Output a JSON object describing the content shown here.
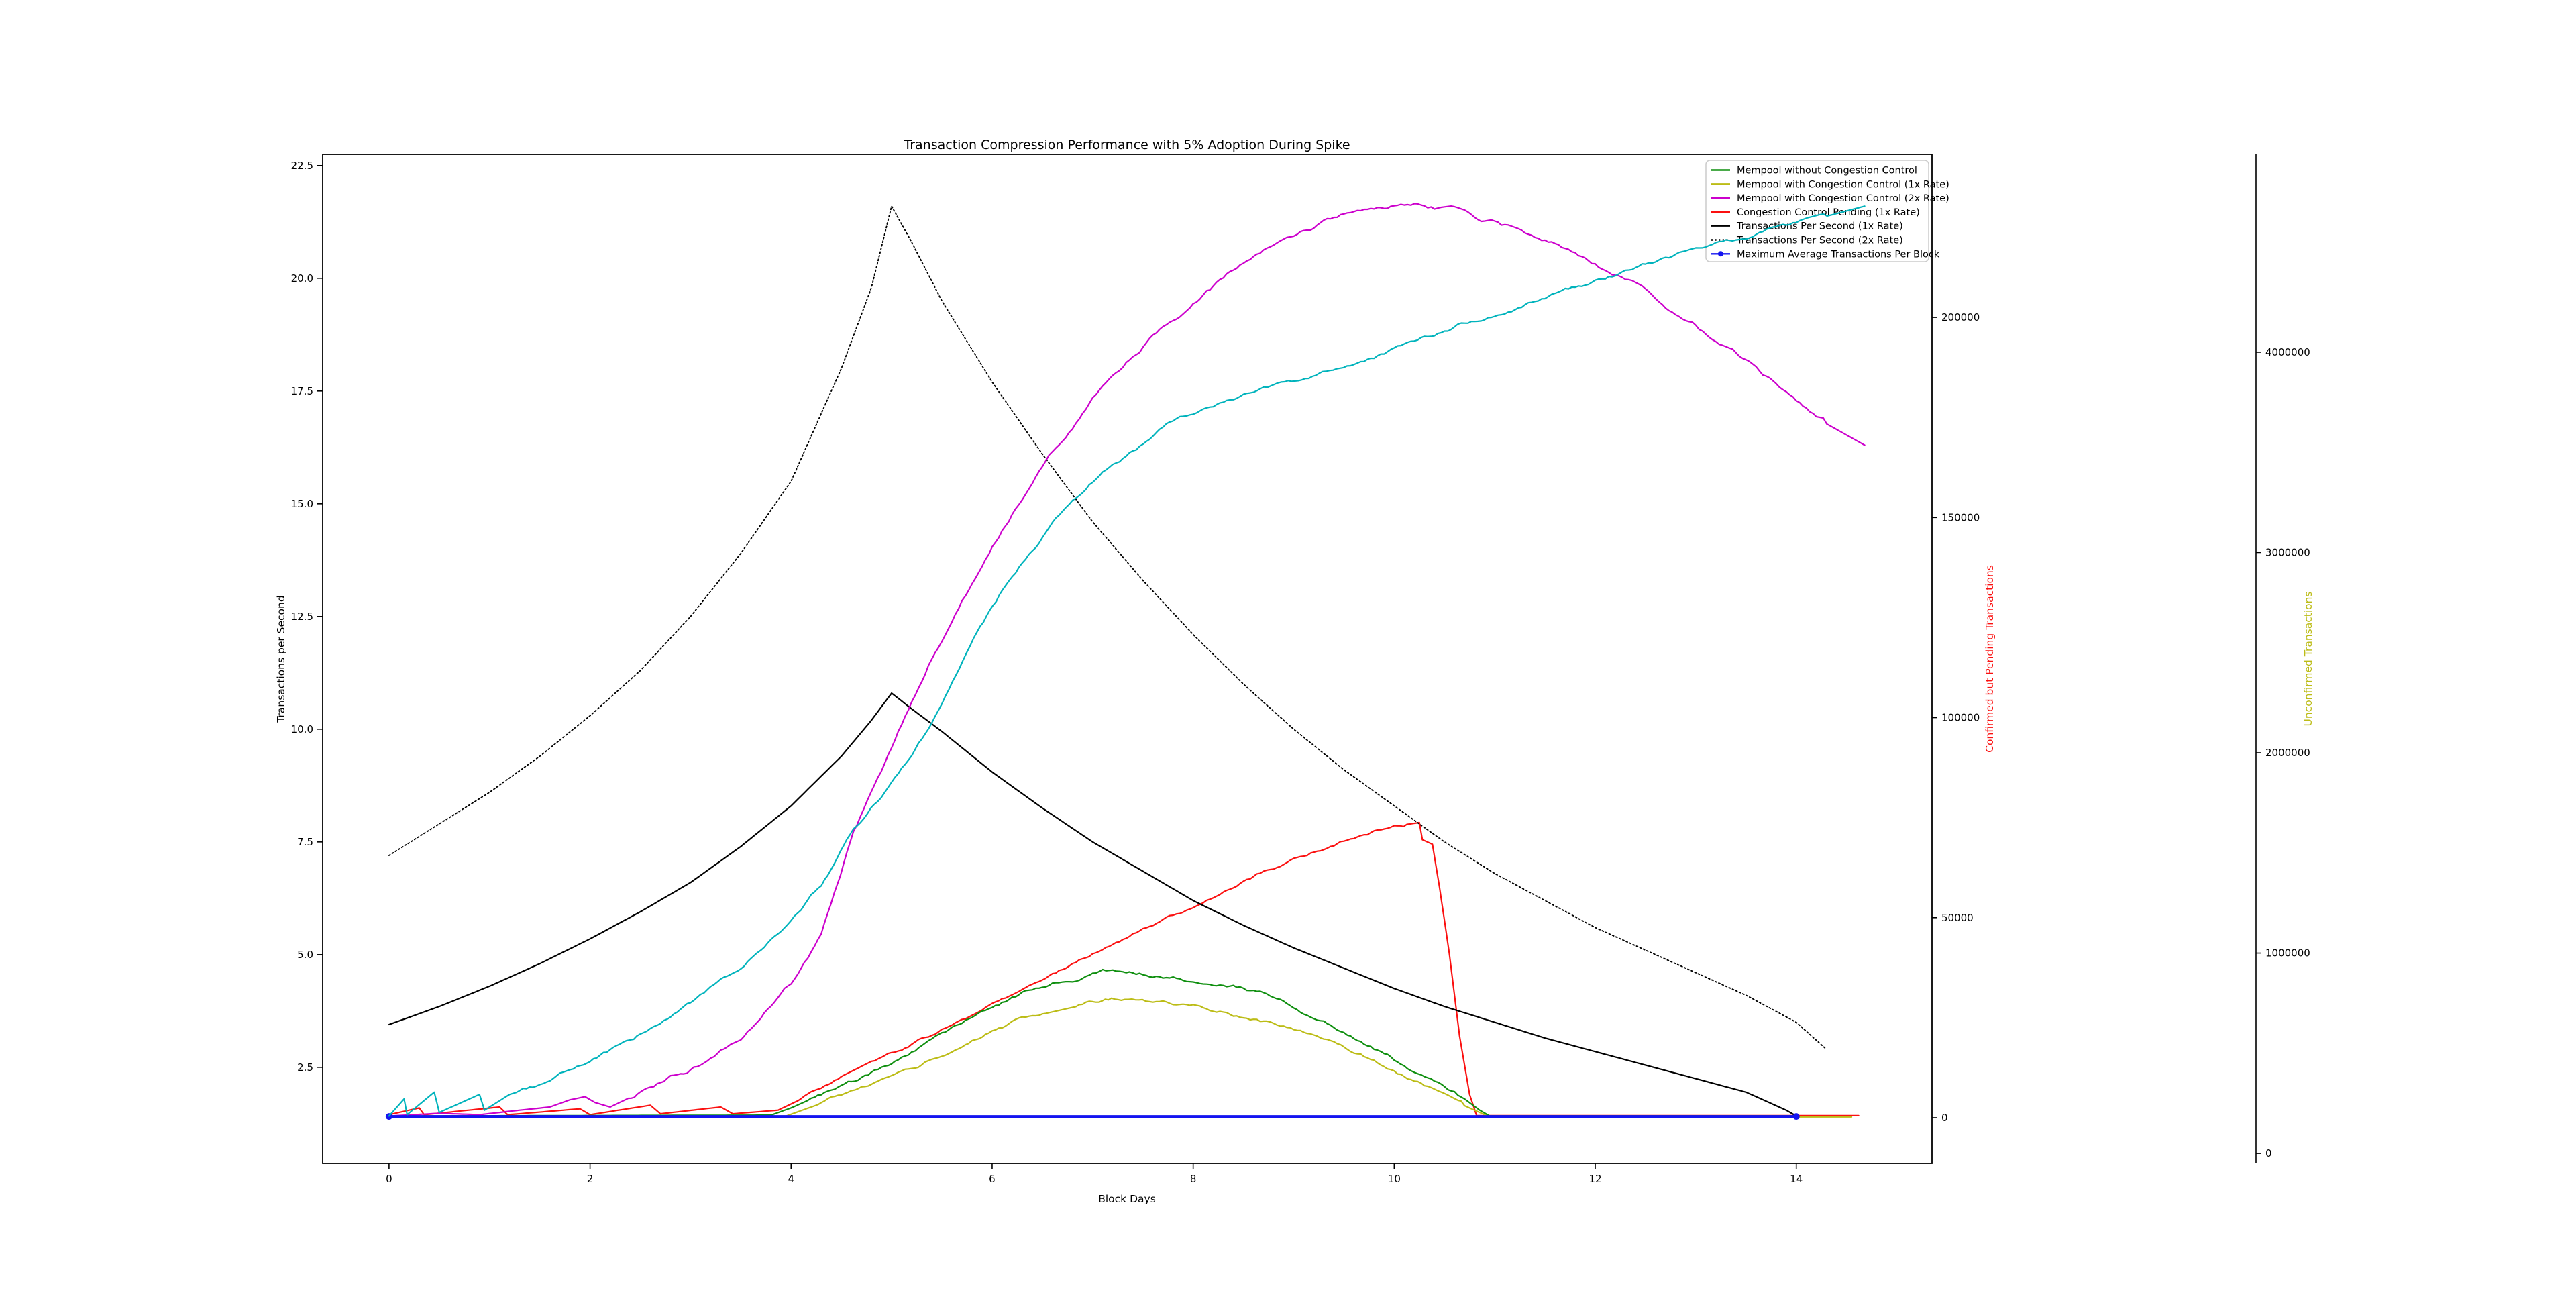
{
  "title": "Transaction Compression Performance with 5% Adoption During Spike",
  "legend": {
    "entries": [
      {
        "series": "mempool_no_cc",
        "label": "Mempool without Congestion Control",
        "color": "#0f8f0f",
        "dash": null,
        "marker": false
      },
      {
        "series": "mempool_cc_1x",
        "label": "Mempool with Congestion Control (1x Rate)",
        "color": "#bcbc16",
        "dash": null,
        "marker": false
      },
      {
        "series": "mempool_cc_2x",
        "label": "Mempool with Congestion Control (2x Rate)",
        "color": "#cc00cc",
        "dash": null,
        "marker": false
      },
      {
        "series": "cc_pending_1x",
        "label": "Congestion Control Pending (1x Rate)",
        "color": "#fb1010",
        "dash": null,
        "marker": false
      },
      {
        "series": "tps_1x",
        "label": "Transactions Per Second (1x Rate)",
        "color": "#000000",
        "dash": null,
        "marker": false
      },
      {
        "series": "tps_2x",
        "label": "Transactions Per Second (2x Rate)",
        "color": "#000000",
        "dash": "2 3.6",
        "marker": false
      },
      {
        "series": "max_avg_per_block",
        "label": "Maximum Average Transactions Per Block",
        "color": "#1414f0",
        "dash": null,
        "marker": true
      }
    ]
  },
  "chart_data": {
    "type": "line",
    "title": "Transaction Compression Performance with 5% Adoption During Spike",
    "xlabel": "Block Days",
    "x_range": [
      -0.66,
      15.35
    ],
    "grid": false,
    "legend_position": "upper right",
    "axes": {
      "x": {
        "label": "Block Days",
        "ticks": [
          0,
          2,
          4,
          6,
          8,
          10,
          12,
          14
        ]
      },
      "left": {
        "label": "Transactions per Second",
        "color": "#000000",
        "range": [
          0.37,
          22.75
        ],
        "ticks": [
          2.5,
          5.0,
          7.5,
          10.0,
          12.5,
          15.0,
          17.5,
          20.0,
          22.5
        ]
      },
      "pending": {
        "label": "Confirmed but Pending Transactions",
        "color": "#fb1010",
        "range": [
          -11400,
          240750
        ],
        "ticks": [
          0,
          50000,
          100000,
          150000,
          200000
        ]
      },
      "unconfirmed": {
        "label": "Unconfirmed Transactions",
        "color": "#bcbc16",
        "range": [
          -50000,
          4988000
        ],
        "ticks": [
          0,
          1000000,
          2000000,
          3000000,
          4000000
        ]
      }
    },
    "series": [
      {
        "id": "cc_pending_1x",
        "name": "Congestion Control Pending (1x Rate)",
        "color": "#fb1010",
        "width": 2.2,
        "dash": null,
        "axis": "left_visual",
        "pending_axis_peak_value": 74000,
        "noise": {
          "amp": 0.06,
          "from": 4.1,
          "to": 10.1,
          "seed": 9
        },
        "points": [
          [
            0,
            1.45
          ],
          [
            0.3,
            1.6
          ],
          [
            0.35,
            1.45
          ],
          [
            1.1,
            1.62
          ],
          [
            1.18,
            1.45
          ],
          [
            1.9,
            1.58
          ],
          [
            2.0,
            1.45
          ],
          [
            2.6,
            1.66
          ],
          [
            2.7,
            1.47
          ],
          [
            3.3,
            1.62
          ],
          [
            3.42,
            1.47
          ],
          [
            3.87,
            1.55
          ],
          [
            4.2,
            1.9
          ],
          [
            4.6,
            2.35
          ],
          [
            5,
            2.8
          ],
          [
            5.5,
            3.35
          ],
          [
            6,
            3.95
          ],
          [
            6.5,
            4.5
          ],
          [
            7,
            5.05
          ],
          [
            7.5,
            5.6
          ],
          [
            8,
            6.1
          ],
          [
            8.5,
            6.65
          ],
          [
            9,
            7.15
          ],
          [
            9.5,
            7.55
          ],
          [
            10,
            7.85
          ],
          [
            10.25,
            7.93
          ],
          [
            10.28,
            7.55
          ],
          [
            10.38,
            7.45
          ],
          [
            10.45,
            6.5
          ],
          [
            10.55,
            5.0
          ],
          [
            10.65,
            3.2
          ],
          [
            10.75,
            1.9
          ],
          [
            10.82,
            1.43
          ],
          [
            14.62,
            1.43
          ]
        ]
      },
      {
        "id": "mempool_cc_1x",
        "name": "Mempool with Congestion Control (1x Rate)",
        "color": "#bcbc16",
        "width": 2.2,
        "dash": null,
        "axis": "left_visual",
        "unconfirmed_axis_peak_value": 780000,
        "noise": {
          "amp": 0.07,
          "from": 4.3,
          "to": 10.7,
          "seed": 13
        },
        "points": [
          [
            0,
            1.4
          ],
          [
            3.95,
            1.42
          ],
          [
            4.3,
            1.7
          ],
          [
            4.7,
            2.0
          ],
          [
            5,
            2.25
          ],
          [
            5.5,
            2.8
          ],
          [
            6,
            3.35
          ],
          [
            6.5,
            3.75
          ],
          [
            7,
            4.0
          ],
          [
            7.25,
            4.06
          ],
          [
            7.6,
            3.95
          ],
          [
            8,
            3.82
          ],
          [
            8.5,
            3.6
          ],
          [
            9,
            3.3
          ],
          [
            9.4,
            3.0
          ],
          [
            9.8,
            2.6
          ],
          [
            10.2,
            2.15
          ],
          [
            10.5,
            1.85
          ],
          [
            10.8,
            1.55
          ],
          [
            10.95,
            1.4
          ],
          [
            14.55,
            1.4
          ]
        ]
      },
      {
        "id": "mempool_no_cc",
        "name": "Mempool without Congestion Control",
        "color": "#0f8f0f",
        "width": 2.2,
        "dash": null,
        "axis": "left_visual",
        "unconfirmed_axis_peak_value": 915000,
        "noise": {
          "amp": 0.07,
          "from": 4.2,
          "to": 10.6,
          "seed": 7
        },
        "points": [
          [
            0,
            1.42
          ],
          [
            3.8,
            1.44
          ],
          [
            4,
            1.6
          ],
          [
            4.3,
            1.9
          ],
          [
            4.6,
            2.15
          ],
          [
            5,
            2.6
          ],
          [
            5.5,
            3.2
          ],
          [
            6,
            3.8
          ],
          [
            6.4,
            4.2
          ],
          [
            6.8,
            4.45
          ],
          [
            7.1,
            4.66
          ],
          [
            7.4,
            4.62
          ],
          [
            7.8,
            4.52
          ],
          [
            8.1,
            4.42
          ],
          [
            8.4,
            4.32
          ],
          [
            8.7,
            4.12
          ],
          [
            9,
            3.85
          ],
          [
            9.3,
            3.55
          ],
          [
            9.6,
            3.2
          ],
          [
            9.9,
            2.85
          ],
          [
            10.2,
            2.45
          ],
          [
            10.5,
            2.05
          ],
          [
            10.7,
            1.8
          ],
          [
            10.85,
            1.55
          ],
          [
            10.95,
            1.42
          ],
          [
            14,
            1.42
          ]
        ]
      },
      {
        "id": "tps_2x",
        "name": "Transactions Per Second (2x Rate)",
        "color": "#000000",
        "width": 1.9,
        "dash": "2 3.6",
        "axis": "left",
        "noise": {
          "amp": 0,
          "from": 0,
          "to": 0,
          "seed": 1
        },
        "points": [
          [
            0,
            7.2
          ],
          [
            0.5,
            7.9
          ],
          [
            1,
            8.6
          ],
          [
            1.5,
            9.4
          ],
          [
            2,
            10.3
          ],
          [
            2.5,
            11.3
          ],
          [
            3,
            12.5
          ],
          [
            3.5,
            13.9
          ],
          [
            4,
            15.5
          ],
          [
            4.5,
            18.0
          ],
          [
            4.8,
            19.8
          ],
          [
            5,
            21.6
          ],
          [
            5.2,
            20.8
          ],
          [
            5.5,
            19.5
          ],
          [
            6,
            17.7
          ],
          [
            6.5,
            16.1
          ],
          [
            7,
            14.6
          ],
          [
            7.5,
            13.3
          ],
          [
            8,
            12.1
          ],
          [
            8.5,
            11.0
          ],
          [
            9,
            10.0
          ],
          [
            9.5,
            9.1
          ],
          [
            10,
            8.3
          ],
          [
            10.5,
            7.5
          ],
          [
            11,
            6.8
          ],
          [
            11.5,
            6.2
          ],
          [
            12,
            5.6
          ],
          [
            12.5,
            5.1
          ],
          [
            13,
            4.6
          ],
          [
            13.5,
            4.1
          ],
          [
            14,
            3.5
          ],
          [
            14.3,
            2.9
          ]
        ]
      },
      {
        "id": "tps_1x",
        "name": "Transactions Per Second (1x Rate)",
        "color": "#000000",
        "width": 2.2,
        "dash": null,
        "axis": "left",
        "noise": {
          "amp": 0,
          "from": 0,
          "to": 0,
          "seed": 2
        },
        "points": [
          [
            0,
            3.45
          ],
          [
            0.5,
            3.85
          ],
          [
            1,
            4.3
          ],
          [
            1.5,
            4.8
          ],
          [
            2,
            5.35
          ],
          [
            2.5,
            5.95
          ],
          [
            3,
            6.6
          ],
          [
            3.5,
            7.4
          ],
          [
            4,
            8.3
          ],
          [
            4.5,
            9.4
          ],
          [
            4.8,
            10.2
          ],
          [
            5,
            10.8
          ],
          [
            5.2,
            10.45
          ],
          [
            5.5,
            9.95
          ],
          [
            6,
            9.05
          ],
          [
            6.5,
            8.25
          ],
          [
            7,
            7.5
          ],
          [
            7.5,
            6.85
          ],
          [
            8,
            6.2
          ],
          [
            8.5,
            5.65
          ],
          [
            9,
            5.15
          ],
          [
            9.5,
            4.7
          ],
          [
            10,
            4.25
          ],
          [
            10.5,
            3.85
          ],
          [
            11,
            3.5
          ],
          [
            11.5,
            3.15
          ],
          [
            12,
            2.85
          ],
          [
            12.5,
            2.55
          ],
          [
            13,
            2.25
          ],
          [
            13.5,
            1.95
          ],
          [
            13.9,
            1.55
          ],
          [
            14,
            1.42
          ]
        ]
      },
      {
        "id": "mempool_cc_2x",
        "name": "Mempool with Congestion Control (2x Rate)",
        "color": "#cc00cc",
        "width": 2.2,
        "dash": null,
        "axis": "left_visual",
        "unconfirmed_axis_peak_value": 4700000,
        "noise": {
          "amp": 0.09,
          "from": 2.4,
          "to": 14.3,
          "seed": 5
        },
        "points": [
          [
            0,
            1.42
          ],
          [
            0.5,
            1.48
          ],
          [
            0.9,
            1.45
          ],
          [
            1.3,
            1.55
          ],
          [
            1.6,
            1.62
          ],
          [
            1.8,
            1.78
          ],
          [
            1.95,
            1.85
          ],
          [
            2.05,
            1.72
          ],
          [
            2.2,
            1.62
          ],
          [
            2.35,
            1.78
          ],
          [
            2.5,
            1.95
          ],
          [
            3,
            2.5
          ],
          [
            3.5,
            3.2
          ],
          [
            4,
            4.4
          ],
          [
            4.3,
            5.4
          ],
          [
            4.62,
            7.76
          ],
          [
            5,
            9.6
          ],
          [
            5.4,
            11.6
          ],
          [
            5.7,
            12.9
          ],
          [
            6,
            14.1
          ],
          [
            6.5,
            15.9
          ],
          [
            7,
            17.3
          ],
          [
            7.5,
            18.5
          ],
          [
            8,
            19.5
          ],
          [
            8.5,
            20.3
          ],
          [
            9,
            20.9
          ],
          [
            9.4,
            21.3
          ],
          [
            9.8,
            21.6
          ],
          [
            10.2,
            21.65
          ],
          [
            10.6,
            21.5
          ],
          [
            11,
            21.2
          ],
          [
            11.5,
            20.8
          ],
          [
            12,
            20.3
          ],
          [
            12.5,
            19.7
          ],
          [
            13,
            19.0
          ],
          [
            13.4,
            18.3
          ],
          [
            13.8,
            17.6
          ],
          [
            14.2,
            16.9
          ],
          [
            14.68,
            16.3
          ]
        ]
      },
      {
        "id": "max_avg_per_block",
        "name": "Maximum Average Transactions Per Block",
        "color": "#1414f0",
        "width": 4,
        "dash": null,
        "marker_ends": true,
        "axis": "left",
        "noise": {
          "amp": 0,
          "from": 0,
          "to": 0,
          "seed": 4
        },
        "points": [
          [
            0,
            1.41
          ],
          [
            14,
            1.41
          ]
        ]
      },
      {
        "id": "unconfirmed_cyan",
        "name": "",
        "color": "#00b3bc",
        "width": 2.2,
        "dash": null,
        "axis": "left_visual",
        "noise": {
          "amp": 0.075,
          "from": 1.3,
          "to": 14.3,
          "seed": 3
        },
        "points": [
          [
            0,
            1.42
          ],
          [
            0.15,
            1.8
          ],
          [
            0.18,
            1.45
          ],
          [
            0.45,
            1.95
          ],
          [
            0.5,
            1.5
          ],
          [
            0.9,
            1.9
          ],
          [
            0.95,
            1.55
          ],
          [
            1.2,
            1.9
          ],
          [
            1.5,
            2.1
          ],
          [
            2,
            2.6
          ],
          [
            2.3,
            2.95
          ],
          [
            3,
            3.9
          ],
          [
            3.5,
            4.75
          ],
          [
            4,
            5.8
          ],
          [
            4.3,
            6.6
          ],
          [
            4.62,
            7.76
          ],
          [
            5,
            8.8
          ],
          [
            5.5,
            10.5
          ],
          [
            5.85,
            12.1
          ],
          [
            6.2,
            13.4
          ],
          [
            6.6,
            14.6
          ],
          [
            7,
            15.5
          ],
          [
            7.4,
            16.2
          ],
          [
            7.8,
            16.8
          ],
          [
            8.2,
            17.2
          ],
          [
            8.6,
            17.5
          ],
          [
            9.15,
            17.75
          ],
          [
            9.6,
            18.1
          ],
          [
            10,
            18.4
          ],
          [
            10.5,
            18.8
          ],
          [
            11,
            19.2
          ],
          [
            11.5,
            19.6
          ],
          [
            12,
            19.95
          ],
          [
            12.5,
            20.3
          ],
          [
            13,
            20.6
          ],
          [
            13.5,
            20.9
          ],
          [
            14,
            21.2
          ],
          [
            14.68,
            21.6
          ]
        ]
      }
    ]
  }
}
